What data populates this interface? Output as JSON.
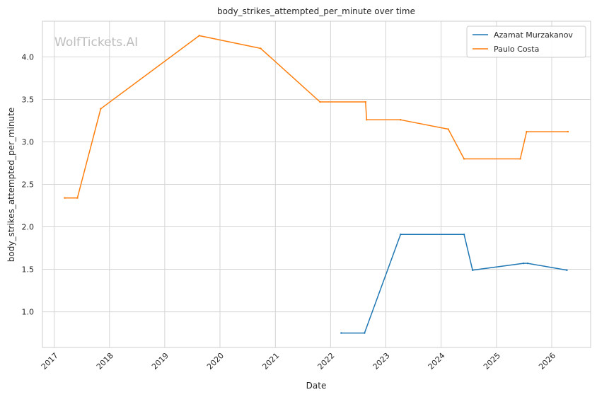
{
  "chart_data": {
    "type": "line",
    "title": "body_strikes_attempted_per_minute over time",
    "xlabel": "Date",
    "ylabel": "body_strikes_attempted_per_minute",
    "watermark": "WolfTickets.AI",
    "xlim": [
      "2016-10-15",
      "2026-09-15"
    ],
    "ylim": [
      0.58,
      4.42
    ],
    "x_ticks": [
      "2017",
      "2018",
      "2019",
      "2020",
      "2021",
      "2022",
      "2023",
      "2024",
      "2025",
      "2026"
    ],
    "y_ticks": [
      "1.0",
      "1.5",
      "2.0",
      "2.5",
      "3.0",
      "3.5",
      "4.0"
    ],
    "grid": true,
    "legend_position": "top-right",
    "series": [
      {
        "name": "Azamat Murzakanov",
        "color": "#1f77b4",
        "points": [
          [
            "2022-03-12",
            0.75
          ],
          [
            "2022-08-13",
            0.75
          ],
          [
            "2023-04-08",
            1.91
          ],
          [
            "2024-06-01",
            1.91
          ],
          [
            "2024-07-27",
            1.49
          ],
          [
            "2025-06-28",
            1.57
          ],
          [
            "2025-07-26",
            1.57
          ],
          [
            "2026-04-11",
            1.49
          ]
        ]
      },
      {
        "name": "Paulo Costa",
        "color": "#ff7f0e",
        "points": [
          [
            "2017-03-11",
            2.34
          ],
          [
            "2017-06-03",
            2.34
          ],
          [
            "2017-11-04",
            3.39
          ],
          [
            "2019-08-17",
            4.25
          ],
          [
            "2020-09-26",
            4.1
          ],
          [
            "2021-10-23",
            3.47
          ],
          [
            "2022-08-20",
            3.47
          ],
          [
            "2022-08-27",
            3.26
          ],
          [
            "2023-04-08",
            3.26
          ],
          [
            "2024-02-17",
            3.15
          ],
          [
            "2024-06-01",
            2.8
          ],
          [
            "2025-06-07",
            2.8
          ],
          [
            "2025-07-19",
            3.12
          ],
          [
            "2026-04-18",
            3.12
          ]
        ]
      }
    ]
  }
}
